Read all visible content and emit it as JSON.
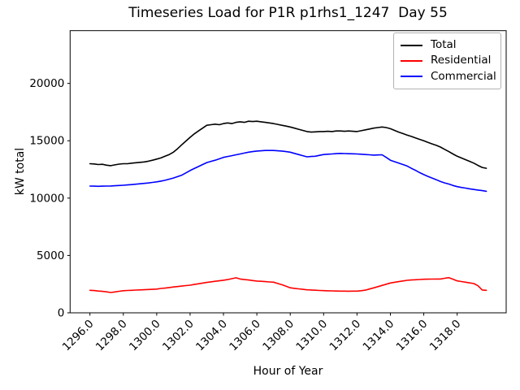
{
  "chart_data": {
    "type": "line",
    "title": "Timeseries Load for P1R p1rhs1_1247  Day 55",
    "xlabel": "Hour of Year",
    "ylabel": "kW total",
    "xlim": [
      1294.8125,
      1320.9375
    ],
    "ylim": [
      0,
      24600
    ],
    "grid": false,
    "legend_position": "upper right",
    "x_start": 1296.0,
    "x_step": 0.25,
    "x_tick_values": [
      1296,
      1298,
      1300,
      1302,
      1304,
      1306,
      1308,
      1310,
      1312,
      1314,
      1316,
      1318
    ],
    "x_tick_labels": [
      "1296.0",
      "1298.0",
      "1300.0",
      "1302.0",
      "1304.0",
      "1306.0",
      "1308.0",
      "1310.0",
      "1312.0",
      "1314.0",
      "1316.0",
      "1318.0"
    ],
    "y_ticks": [
      0,
      5000,
      10000,
      15000,
      20000
    ],
    "series": [
      {
        "name": "Total",
        "color": "#000000",
        "values": [
          13000,
          12975,
          12925,
          12950,
          12870,
          12830,
          12900,
          12960,
          13000,
          13000,
          13050,
          13080,
          13120,
          13150,
          13220,
          13300,
          13400,
          13500,
          13650,
          13800,
          14000,
          14300,
          14650,
          14975,
          15300,
          15600,
          15850,
          16100,
          16350,
          16400,
          16450,
          16400,
          16500,
          16550,
          16500,
          16600,
          16650,
          16600,
          16700,
          16675,
          16700,
          16650,
          16600,
          16550,
          16500,
          16425,
          16350,
          16275,
          16200,
          16100,
          16000,
          15900,
          15800,
          15750,
          15775,
          15800,
          15800,
          15825,
          15800,
          15850,
          15850,
          15825,
          15850,
          15825,
          15800,
          15875,
          15950,
          16025,
          16100,
          16150,
          16200,
          16150,
          16050,
          15900,
          15750,
          15625,
          15500,
          15375,
          15250,
          15125,
          15000,
          14850,
          14725,
          14600,
          14450,
          14250,
          14050,
          13850,
          13650,
          13500,
          13350,
          13200,
          13050,
          12850,
          12675,
          12600
        ]
      },
      {
        "name": "Residential",
        "color": "#ff0000",
        "values": [
          1960,
          1940,
          1900,
          1870,
          1830,
          1770,
          1820,
          1880,
          1930,
          1950,
          1960,
          1980,
          2000,
          2015,
          2030,
          2050,
          2070,
          2125,
          2150,
          2200,
          2250,
          2290,
          2330,
          2370,
          2410,
          2470,
          2530,
          2590,
          2650,
          2700,
          2745,
          2790,
          2840,
          2900,
          2975,
          3050,
          2950,
          2900,
          2860,
          2815,
          2770,
          2745,
          2720,
          2695,
          2670,
          2560,
          2450,
          2315,
          2180,
          2135,
          2090,
          2050,
          2005,
          1990,
          1970,
          1950,
          1935,
          1920,
          1910,
          1900,
          1890,
          1890,
          1885,
          1890,
          1890,
          1925,
          1975,
          2075,
          2175,
          2280,
          2390,
          2495,
          2600,
          2660,
          2720,
          2780,
          2835,
          2860,
          2885,
          2905,
          2925,
          2930,
          2940,
          2945,
          2950,
          3010,
          3070,
          2930,
          2785,
          2725,
          2670,
          2610,
          2550,
          2360,
          1990,
          1960
        ]
      },
      {
        "name": "Commercial",
        "color": "#0000ff",
        "values": [
          11050,
          11040,
          11030,
          11040,
          11050,
          11060,
          11080,
          11100,
          11120,
          11150,
          11180,
          11215,
          11250,
          11285,
          11320,
          11370,
          11420,
          11480,
          11550,
          11650,
          11750,
          11870,
          12000,
          12200,
          12400,
          12580,
          12750,
          12925,
          13100,
          13200,
          13300,
          13425,
          13550,
          13625,
          13700,
          13775,
          13850,
          13925,
          14000,
          14050,
          14100,
          14125,
          14150,
          14150,
          14150,
          14125,
          14100,
          14050,
          14000,
          13900,
          13800,
          13700,
          13600,
          13625,
          13650,
          13725,
          13800,
          13825,
          13850,
          13875,
          13900,
          13885,
          13870,
          13860,
          13850,
          13825,
          13800,
          13775,
          13750,
          13760,
          13780,
          13550,
          13300,
          13175,
          13050,
          12925,
          12800,
          12600,
          12425,
          12225,
          12050,
          11890,
          11750,
          11600,
          11450,
          11325,
          11225,
          11100,
          11000,
          10930,
          10870,
          10810,
          10750,
          10700,
          10650,
          10600
        ]
      }
    ]
  }
}
